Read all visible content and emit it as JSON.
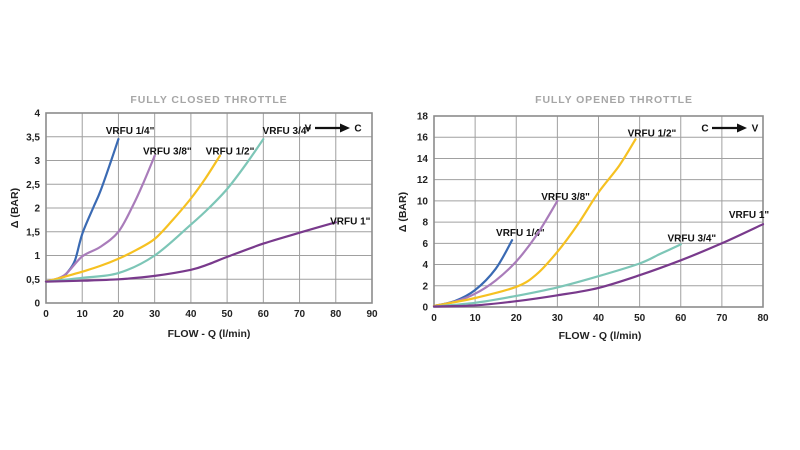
{
  "page": {
    "background": "#ffffff"
  },
  "styles": {
    "grid_color": "#a0a0a0",
    "border_color": "#8c8c8c",
    "title_color": "#a6a6a6",
    "text_color": "#222222",
    "arrow_color": "#111111"
  },
  "chart_data": [
    {
      "type": "line",
      "title": "FULLY CLOSED THROTTLE",
      "xlabel": "FLOW - Q (l/min)",
      "ylabel": "Δ (BAR)",
      "x_range": [
        0,
        90
      ],
      "y_range": [
        0,
        4
      ],
      "grid": true,
      "legend_position": "inline-labels",
      "x_ticks": {
        "values": [
          0,
          10,
          20,
          30,
          40,
          50,
          60,
          70,
          80,
          90
        ],
        "labels": [
          "0",
          "10",
          "20",
          "30",
          "40",
          "50",
          "60",
          "70",
          "80",
          "90"
        ]
      },
      "y_ticks": {
        "values": [
          0,
          0.5,
          1,
          1.5,
          2,
          2.5,
          3,
          3.5,
          4
        ],
        "labels": [
          "0",
          "0,5",
          "1",
          "1,5",
          "2",
          "2,5",
          "3",
          "3,5",
          "4"
        ]
      },
      "direction_arrow": {
        "from": "V",
        "to": "C"
      },
      "series": [
        {
          "name": "VRFU 1/4\"",
          "color": "#3a6ab3",
          "points": [
            [
              0,
              0.45
            ],
            [
              4,
              0.52
            ],
            [
              6,
              0.65
            ],
            [
              8,
              0.9
            ],
            [
              10,
              1.45
            ],
            [
              13,
              2.0
            ],
            [
              15,
              2.35
            ],
            [
              18,
              3.0
            ],
            [
              20,
              3.45
            ]
          ],
          "label_pos": [
            23.2,
            3.63
          ]
        },
        {
          "name": "VRFU 3/8\"",
          "color": "#a97cba",
          "points": [
            [
              0,
              0.45
            ],
            [
              5,
              0.58
            ],
            [
              10,
              0.98
            ],
            [
              15,
              1.18
            ],
            [
              20,
              1.5
            ],
            [
              24,
              2.05
            ],
            [
              27,
              2.55
            ],
            [
              30,
              3.1
            ]
          ],
          "label_pos": [
            33.5,
            3.2
          ]
        },
        {
          "name": "VRFU 1/2\"",
          "color": "#f6c121",
          "points": [
            [
              0,
              0.45
            ],
            [
              5,
              0.55
            ],
            [
              10,
              0.66
            ],
            [
              15,
              0.78
            ],
            [
              20,
              0.93
            ],
            [
              25,
              1.12
            ],
            [
              30,
              1.35
            ],
            [
              35,
              1.75
            ],
            [
              40,
              2.2
            ],
            [
              44,
              2.62
            ],
            [
              48,
              3.1
            ]
          ],
          "label_pos": [
            50.8,
            3.2
          ]
        },
        {
          "name": "VRFU 3/4\"",
          "color": "#7dc6b7",
          "points": [
            [
              0,
              0.45
            ],
            [
              10,
              0.53
            ],
            [
              20,
              0.63
            ],
            [
              30,
              1.0
            ],
            [
              40,
              1.65
            ],
            [
              45,
              2.0
            ],
            [
              50,
              2.4
            ],
            [
              55,
              2.9
            ],
            [
              60,
              3.45
            ]
          ],
          "label_pos": [
            66.5,
            3.63
          ]
        },
        {
          "name": "VRFU 1\"",
          "color": "#793a8c",
          "points": [
            [
              0,
              0.45
            ],
            [
              10,
              0.47
            ],
            [
              20,
              0.5
            ],
            [
              30,
              0.57
            ],
            [
              40,
              0.7
            ],
            [
              45,
              0.82
            ],
            [
              50,
              0.97
            ],
            [
              60,
              1.25
            ],
            [
              70,
              1.48
            ],
            [
              80,
              1.7
            ]
          ],
          "label_pos": [
            84,
            1.73
          ]
        }
      ]
    },
    {
      "type": "line",
      "title": "FULLY OPENED THROTTLE",
      "xlabel": "FLOW - Q (l/min)",
      "ylabel": "Δ (BAR)",
      "x_range": [
        0,
        80
      ],
      "y_range": [
        0,
        18
      ],
      "grid": true,
      "legend_position": "inline-labels",
      "x_ticks": {
        "values": [
          0,
          10,
          20,
          30,
          40,
          50,
          60,
          70,
          80
        ],
        "labels": [
          "0",
          "10",
          "20",
          "30",
          "40",
          "50",
          "60",
          "70",
          "80"
        ]
      },
      "y_ticks": {
        "values": [
          0,
          2,
          4,
          6,
          8,
          10,
          12,
          14,
          16,
          18
        ],
        "labels": [
          "0",
          "2",
          "4",
          "6",
          "8",
          "10",
          "12",
          "14",
          "16",
          "18"
        ]
      },
      "direction_arrow": {
        "from": "C",
        "to": "V"
      },
      "series": [
        {
          "name": "VRFU 1/4\"",
          "color": "#3a6ab3",
          "points": [
            [
              0,
              0.1
            ],
            [
              5,
              0.55
            ],
            [
              10,
              1.6
            ],
            [
              15,
              3.6
            ],
            [
              19,
              6.3
            ]
          ],
          "label_pos": [
            21,
            7.0
          ]
        },
        {
          "name": "VRFU 3/8\"",
          "color": "#a97cba",
          "points": [
            [
              0,
              0.1
            ],
            [
              5,
              0.5
            ],
            [
              10,
              1.25
            ],
            [
              15,
              2.5
            ],
            [
              20,
              4.3
            ],
            [
              25,
              6.8
            ],
            [
              30,
              10
            ]
          ],
          "label_pos": [
            32,
            10.4
          ]
        },
        {
          "name": "VRFU 1/2\"",
          "color": "#f6c121",
          "points": [
            [
              0,
              0.1
            ],
            [
              10,
              0.85
            ],
            [
              20,
              1.9
            ],
            [
              25,
              3.1
            ],
            [
              30,
              5.2
            ],
            [
              35,
              7.8
            ],
            [
              40,
              10.8
            ],
            [
              45,
              13.3
            ],
            [
              49,
              15.8
            ]
          ],
          "label_pos": [
            53,
            16.4
          ]
        },
        {
          "name": "VRFU 3/4\"",
          "color": "#7dc6b7",
          "points": [
            [
              0,
              0.05
            ],
            [
              10,
              0.4
            ],
            [
              20,
              1.05
            ],
            [
              30,
              1.85
            ],
            [
              40,
              2.9
            ],
            [
              50,
              4.1
            ],
            [
              55,
              5.0
            ],
            [
              60,
              5.9
            ]
          ],
          "label_pos": [
            62.7,
            6.5
          ]
        },
        {
          "name": "VRFU 1\"",
          "color": "#793a8c",
          "points": [
            [
              0,
              0.05
            ],
            [
              10,
              0.15
            ],
            [
              20,
              0.55
            ],
            [
              30,
              1.1
            ],
            [
              40,
              1.8
            ],
            [
              50,
              3.0
            ],
            [
              60,
              4.4
            ],
            [
              70,
              6.0
            ],
            [
              80,
              7.8
            ]
          ],
          "label_pos": [
            76.6,
            8.7
          ]
        }
      ]
    }
  ]
}
